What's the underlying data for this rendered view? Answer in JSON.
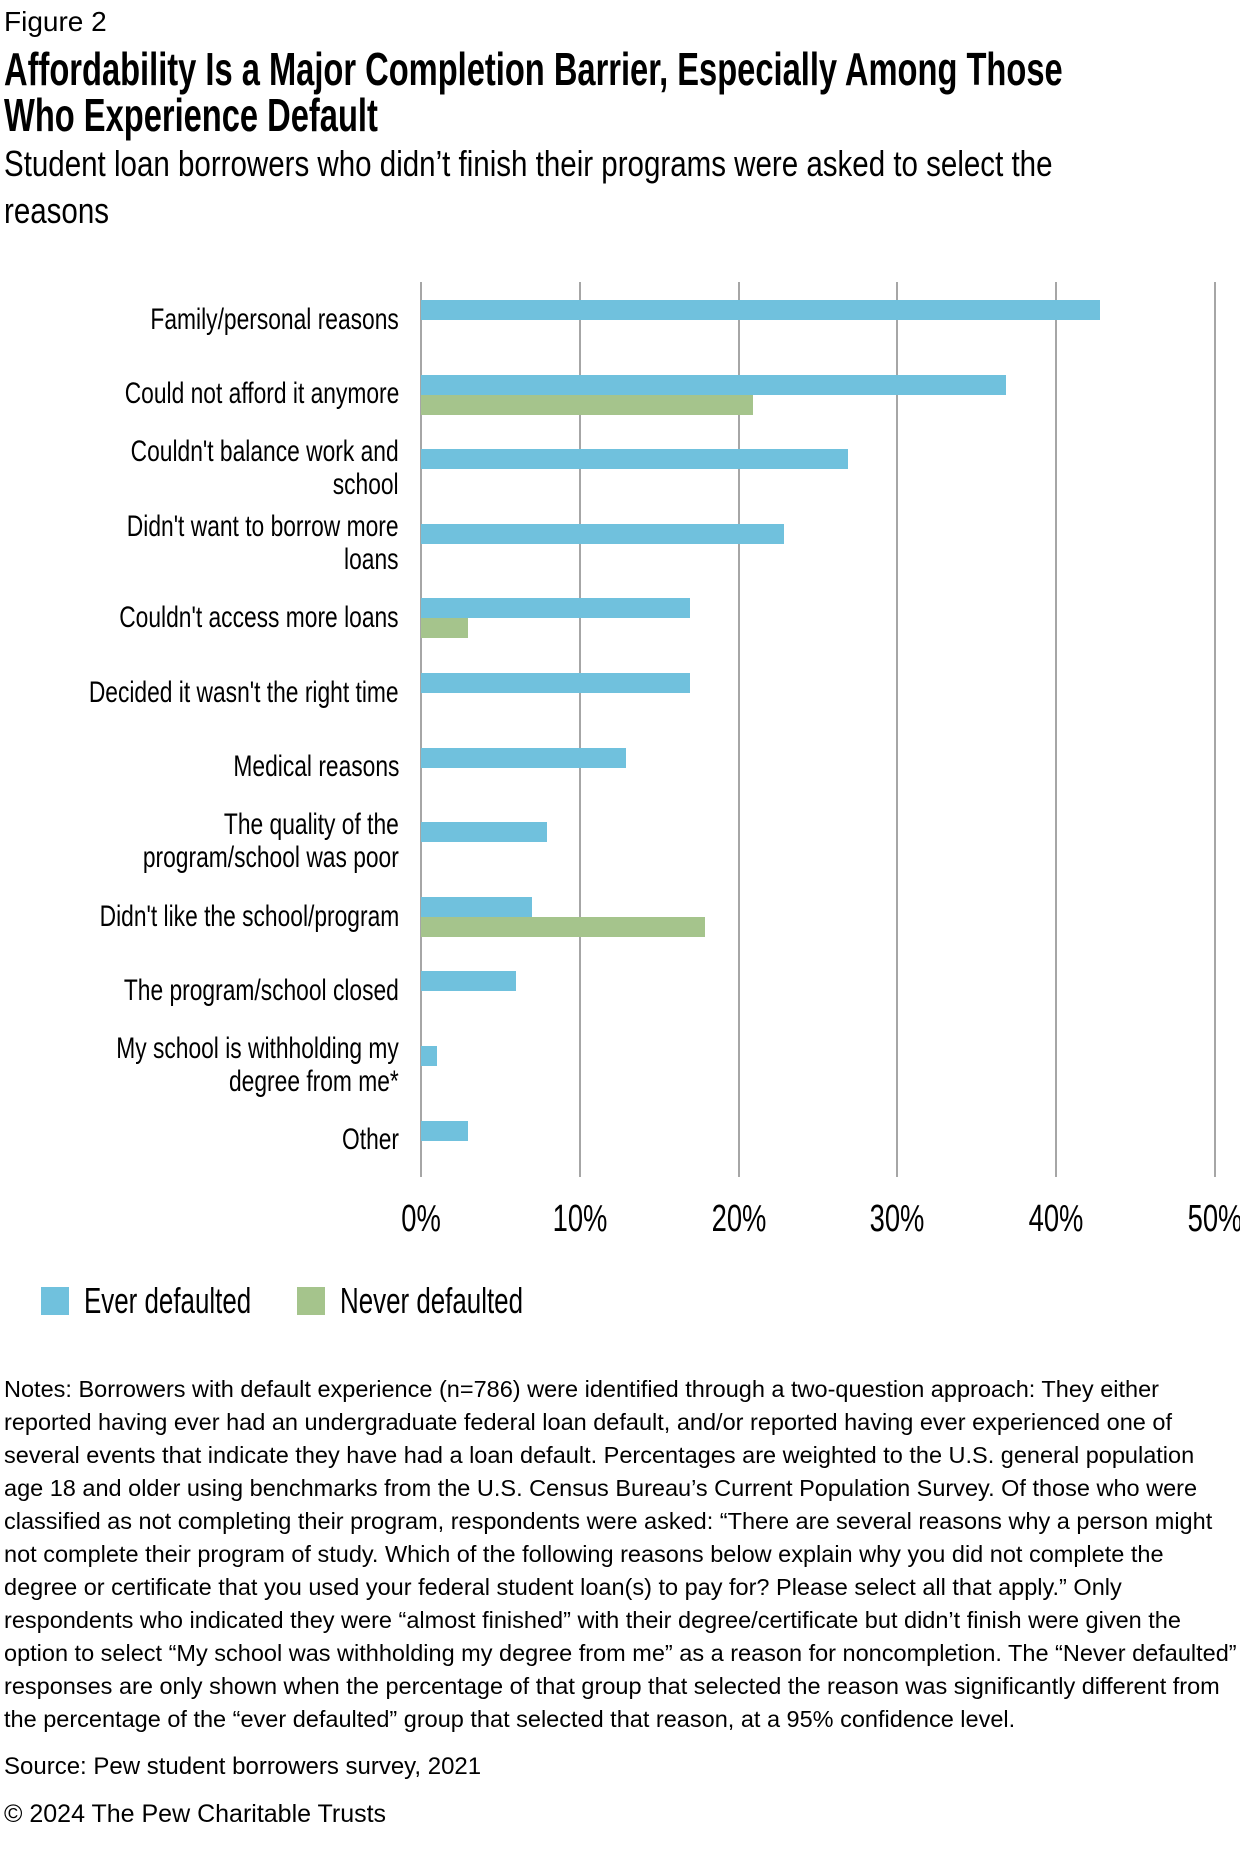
{
  "header": {
    "figure_label": "Figure 2",
    "title_lines": [
      "Affordability Is a Major Completion Barrier, Especially Among Those",
      "Who Experience Default"
    ],
    "subtitle_lines": [
      "Student loan borrowers who didn’t finish their programs were asked to select the",
      "reasons"
    ]
  },
  "chart_data": {
    "type": "bar",
    "orientation": "horizontal",
    "title": "Affordability Is a Major Completion Barrier, Especially Among Those Who Experience Default",
    "subtitle": "Student loan borrowers who didn’t finish their programs were asked to select the reasons",
    "categories": [
      "Family/personal reasons",
      "Could not afford it anymore",
      "Couldn't balance work and\nschool",
      "Didn't want to borrow more\nloans",
      "Couldn't access more loans",
      "Decided it wasn't the right time",
      "Medical reasons",
      "The quality of the\nprogram/school was poor",
      "Didn't like the school/program",
      "The program/school closed",
      "My school is withholding my\ndegree from me*",
      "Other"
    ],
    "series": [
      {
        "name": "Ever defaulted",
        "color": "#70C1DD",
        "values": [
          43,
          37,
          27,
          23,
          17,
          17,
          13,
          8,
          7,
          6,
          1,
          3
        ]
      },
      {
        "name": "Never defaulted",
        "color": "#A5C48C",
        "values": [
          null,
          21,
          null,
          null,
          3,
          null,
          null,
          null,
          18,
          null,
          null,
          null
        ]
      }
    ],
    "unit": "%",
    "x_ticks": [
      "0%",
      "10%",
      "20%",
      "30%",
      "40%",
      "50%"
    ],
    "xlim": [
      0,
      50
    ],
    "xlabel": "",
    "ylabel": "",
    "grid": "vertical",
    "gridline_color": "#A6A6A6",
    "legend_position": "bottom-left"
  },
  "footer": {
    "notes": "Notes: Borrowers with default experience (n=786) were identified through a two-question approach: They either reported having ever had an undergraduate federal loan default, and/or reported having ever experienced one of several events that indicate they have had a loan default. Percentages are weighted to the U.S. general population age 18 and older using benchmarks from the U.S. Census Bureau’s Current Population Survey. Of those who were classified as not completing their program, respondents were asked: “There are several reasons why a person might not complete their program of study. Which of the following reasons below explain why you did not complete the degree or certificate that you used your federal student loan(s) to pay for? Please select all that apply.” Only respondents who indicated they were “almost finished” with their degree/certificate but didn’t finish were given the option to select “My school was withholding my degree from me” as a reason for noncompletion. The “Never defaulted” responses are only shown when the percentage of that group that selected the reason was significantly different from the percentage of the “ever defaulted” group that selected that reason, at a 95% confidence level.",
    "source": "Source: Pew student borrowers survey, 2021",
    "copyright": "© 2024 The Pew Charitable Trusts"
  }
}
